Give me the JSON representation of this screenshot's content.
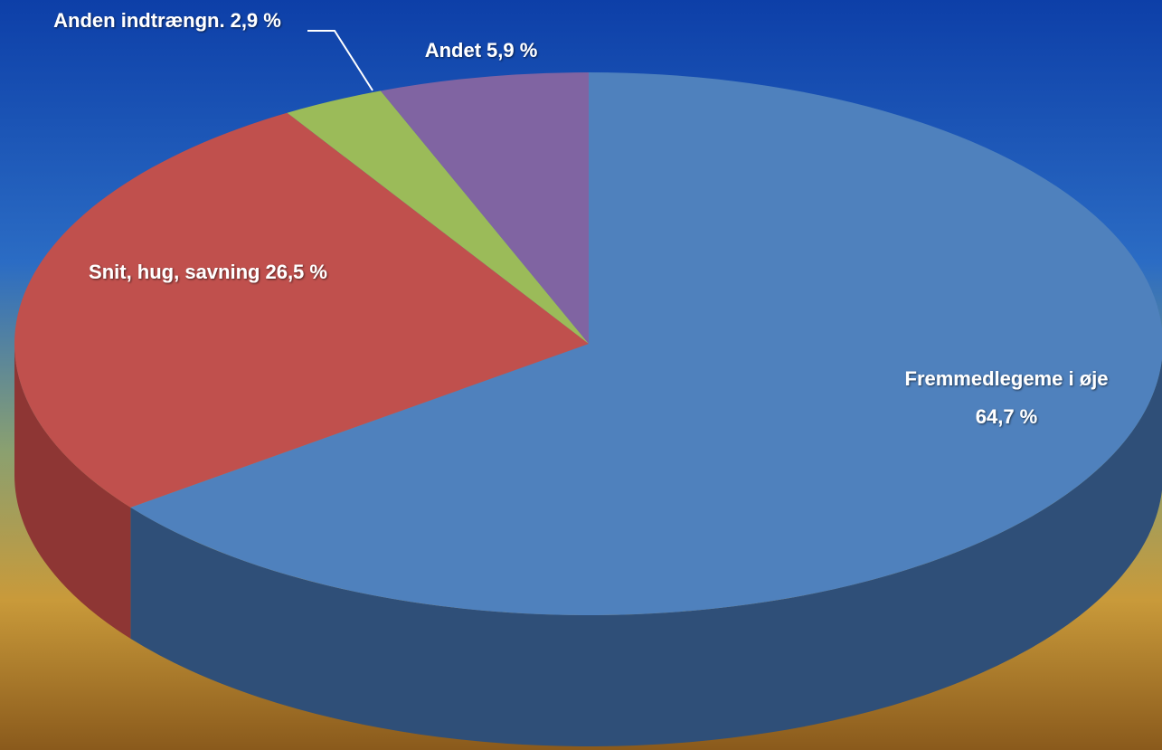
{
  "chart_data": {
    "type": "pie",
    "categories": [
      "Fremmedlegeme i øje",
      "Snit, hug, savning",
      "Anden indtrængn.",
      "Andet"
    ],
    "values": [
      64.7,
      26.5,
      2.9,
      5.9
    ],
    "value_labels": [
      "64,7 %",
      "26,5 %",
      "2,9 %",
      "5,9 %"
    ],
    "colors": [
      "#4f81bd",
      "#c0504d",
      "#9bbb59",
      "#8064a2"
    ],
    "side_colors": [
      "#2f4f78",
      "#8e3634",
      "#6f8a3e",
      "#5b4778"
    ],
    "start": "top",
    "direction": "clockwise"
  }
}
